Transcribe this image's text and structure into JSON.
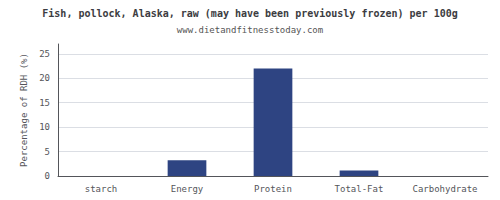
{
  "chart_data": {
    "type": "bar",
    "title": "Fish, pollock, Alaska, raw (may have been previously frozen) per 100g",
    "subtitle": "www.dietandfitnesstoday.com",
    "ylabel": "Percentage of RDH (%)",
    "categories": [
      "starch",
      "Energy",
      "Protein",
      "Total-Fat",
      "Carbohydrate"
    ],
    "values": [
      0.0,
      3.2,
      22.0,
      1.1,
      0.0
    ],
    "color": "#2e4482",
    "ylim": [
      0,
      27
    ],
    "yticks": [
      0,
      5,
      10,
      15,
      20,
      25
    ],
    "grid": true
  }
}
